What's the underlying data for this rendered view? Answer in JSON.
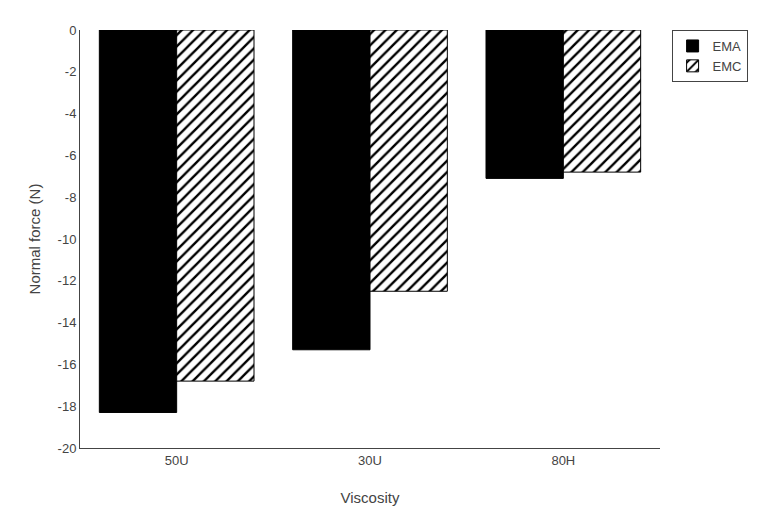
{
  "chart_data": {
    "type": "bar",
    "xlabel": "Viscosity",
    "ylabel": "Normal force (N)",
    "categories": [
      "50U",
      "30U",
      "80H"
    ],
    "series": [
      {
        "name": "EMA",
        "color": "#000000",
        "values": [
          -18.3,
          -15.3,
          -7.1
        ]
      },
      {
        "name": "EMC",
        "color": "#ffffff",
        "marker": "hatch",
        "values": [
          -16.8,
          -12.5,
          -6.8
        ]
      }
    ],
    "ylim": [
      -20,
      0
    ],
    "yticks": [
      -20,
      -18,
      -16,
      -14,
      -12,
      -10,
      -8,
      -6,
      -4,
      -2,
      0
    ],
    "grid": false,
    "legend": "upper right"
  }
}
